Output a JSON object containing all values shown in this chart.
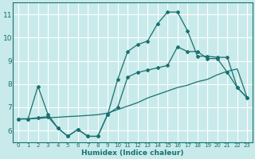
{
  "xlabel": "Humidex (Indice chaleur)",
  "bg_color": "#c8eaea",
  "grid_color": "#ffffff",
  "line_color": "#1a7070",
  "xlim": [
    -0.5,
    23.5
  ],
  "ylim": [
    5.5,
    11.5
  ],
  "yticks": [
    6,
    7,
    8,
    9,
    10,
    11
  ],
  "xticks": [
    0,
    1,
    2,
    3,
    4,
    5,
    6,
    7,
    8,
    9,
    10,
    11,
    12,
    13,
    14,
    15,
    16,
    17,
    18,
    19,
    20,
    21,
    22,
    23
  ],
  "series_spiky_x": [
    0,
    1,
    2,
    3,
    4,
    5,
    6,
    7,
    8,
    9,
    10,
    11,
    12,
    13,
    14,
    15,
    16,
    17,
    18,
    19,
    20,
    21,
    22,
    23
  ],
  "series_spiky_y": [
    6.5,
    6.5,
    7.9,
    6.7,
    6.1,
    5.75,
    6.05,
    5.75,
    5.75,
    6.7,
    8.2,
    9.4,
    9.7,
    9.85,
    10.6,
    11.1,
    11.1,
    10.3,
    9.2,
    9.2,
    9.15,
    9.15,
    7.85,
    7.4
  ],
  "series_mid_x": [
    0,
    1,
    2,
    3,
    4,
    5,
    6,
    7,
    8,
    9,
    10,
    11,
    12,
    13,
    14,
    15,
    16,
    17,
    18,
    19,
    20,
    21,
    22,
    23
  ],
  "series_mid_y": [
    6.5,
    6.5,
    6.55,
    6.6,
    6.1,
    5.75,
    6.05,
    5.75,
    5.75,
    6.7,
    7.0,
    8.3,
    8.5,
    8.6,
    8.7,
    8.8,
    9.6,
    9.4,
    9.4,
    9.1,
    9.1,
    8.5,
    7.85,
    7.4
  ],
  "series_trend_x": [
    0,
    1,
    2,
    3,
    4,
    5,
    6,
    7,
    8,
    9,
    10,
    11,
    12,
    13,
    14,
    15,
    16,
    17,
    18,
    19,
    20,
    21,
    22,
    23
  ],
  "series_trend_y": [
    6.5,
    6.5,
    6.52,
    6.55,
    6.57,
    6.6,
    6.62,
    6.65,
    6.68,
    6.75,
    6.9,
    7.05,
    7.2,
    7.4,
    7.55,
    7.7,
    7.85,
    7.95,
    8.1,
    8.2,
    8.4,
    8.55,
    8.65,
    7.4
  ]
}
